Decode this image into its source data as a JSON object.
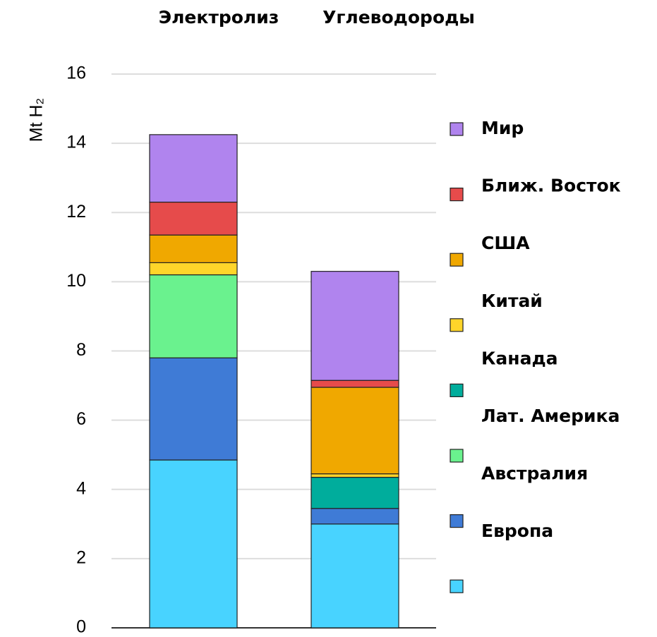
{
  "chart_data": {
    "type": "stacked_bar",
    "categories": [
      "Электролиз",
      "Углеводороды"
    ],
    "y_label": "Mt H₂",
    "ylim": [
      0,
      16
    ],
    "yticks": [
      0,
      2,
      4,
      6,
      8,
      10,
      12,
      14,
      16
    ],
    "grid": true,
    "series": [
      {
        "name": "Европа",
        "color": "#48d3ff",
        "values": [
          4.85,
          3.0
        ]
      },
      {
        "name": "Австралия",
        "color": "#3f7bd6",
        "values": [
          2.95,
          0.45
        ]
      },
      {
        "name": "Лат. Америка",
        "color": "#6af28e",
        "values": [
          2.4,
          0
        ]
      },
      {
        "name": "Канада",
        "color": "#00ad9c",
        "values": [
          0,
          0.9
        ]
      },
      {
        "name": "Китай",
        "color": "#ffd52a",
        "values": [
          0.35,
          0.1
        ]
      },
      {
        "name": "США",
        "color": "#f0a800",
        "values": [
          0.8,
          2.5
        ]
      },
      {
        "name": "Ближ. Восток",
        "color": "#e64b4b",
        "values": [
          0.95,
          0.2
        ]
      },
      {
        "name": "Мир",
        "color": "#b084ee",
        "values": [
          1.95,
          3.15
        ]
      }
    ]
  }
}
